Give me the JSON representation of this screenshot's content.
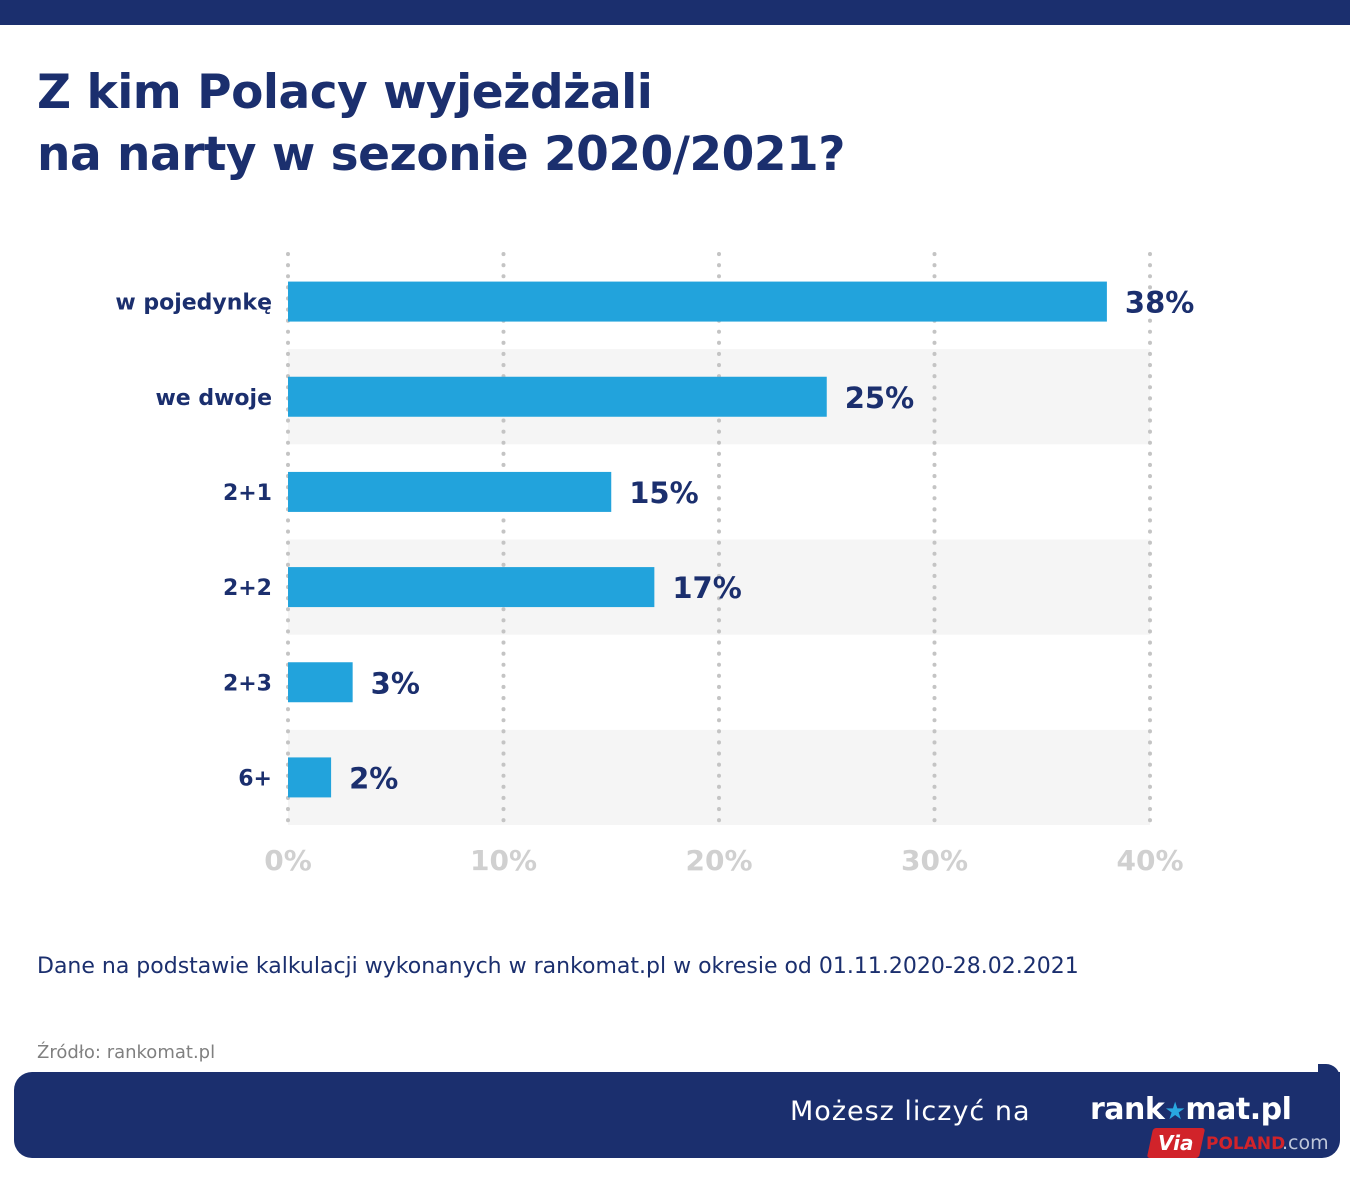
{
  "header": {
    "title_line1": "Z kim Polacy wyjeżdżali",
    "title_line2": "na narty w sezonie 2020/2021?"
  },
  "chart_data": {
    "type": "bar",
    "orientation": "horizontal",
    "categories": [
      "w pojedynkę",
      "we dwoje",
      "2+1",
      "2+2",
      "2+3",
      "6+"
    ],
    "values": [
      38,
      25,
      15,
      17,
      3,
      2
    ],
    "value_labels": [
      "38%",
      "25%",
      "15%",
      "17%",
      "3%",
      "2%"
    ],
    "xlim": [
      0,
      40
    ],
    "ticks": [
      0,
      10,
      20,
      30,
      40
    ],
    "tick_labels": [
      "0%",
      "10%",
      "20%",
      "30%",
      "40%"
    ],
    "grid": "vertical-dotted",
    "bar_color": "#22a3dc",
    "label_color": "#1b2f6e",
    "band_color": "#f5f5f5"
  },
  "footnote": {
    "note": "Dane na podstawie kalkulacji wykonanych w rankomat.pl w okresie od 01.11.2020-28.02.2021",
    "source": "Źródło: rankomat.pl"
  },
  "footer": {
    "tagline": "Możesz liczyć na",
    "logo_left": "rank",
    "logo_star": "★",
    "logo_right": "mat.pl"
  },
  "watermark": {
    "via": "Via",
    "poland": "POLAND",
    "com": ".com"
  },
  "colors": {
    "navy": "#1b2f6e",
    "accent": "#22a3dc",
    "watermark_red": "#d1232a"
  }
}
